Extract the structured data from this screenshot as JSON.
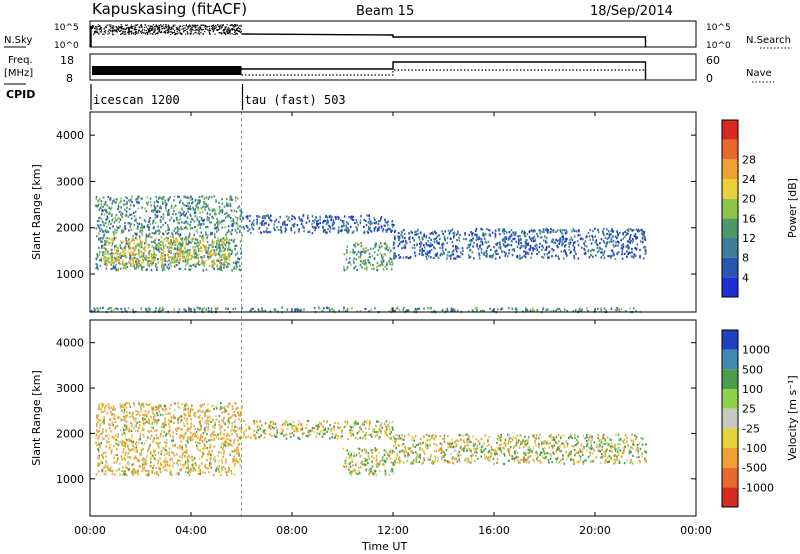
{
  "header": {
    "station": "Kapuskasing (fitACF)",
    "beam": "Beam 15",
    "date": "18/Sep/2014"
  },
  "top_panels": {
    "nsky_label": "N.Sky",
    "nsky_ticks": [
      "10^5",
      "10^0"
    ],
    "nsearch_label": "N.Search",
    "nsearch_ticks": [
      "10^5",
      "10^0"
    ],
    "freq_label_1": "Freq.",
    "freq_label_2": "[MHz]",
    "freq_ticks": [
      "18",
      "8"
    ],
    "nave_label": "Nave",
    "nave_ticks": [
      "60",
      "0"
    ],
    "cpid_label": "CPID",
    "cpid_segments": [
      {
        "name": "icescan 1200",
        "start_hour": 0,
        "end_hour": 6
      },
      {
        "name": "tau (fast) 503",
        "start_hour": 6,
        "end_hour": 24
      }
    ]
  },
  "axes": {
    "ylabel": "Slant Range [km]",
    "xlabel": "Time UT",
    "xticks": [
      "00:00",
      "04:00",
      "08:00",
      "12:00",
      "16:00",
      "20:00",
      "00:00"
    ],
    "yticks": [
      "1000",
      "2000",
      "3000",
      "4000"
    ]
  },
  "power_colorbar": {
    "label": "Power [dB]",
    "ticks": [
      "4",
      "8",
      "12",
      "16",
      "20",
      "24",
      "28"
    ],
    "colors": [
      "#1f2fd6",
      "#2a55b0",
      "#3d7f9a",
      "#4a9a6a",
      "#8ec44a",
      "#e8d23a",
      "#f0a030",
      "#e86a2a",
      "#d82a20"
    ]
  },
  "velocity_colorbar": {
    "label": "Velocity [m s⁻¹]",
    "ticks": [
      "1000",
      "500",
      "100",
      "25",
      "-25",
      "-100",
      "-500",
      "-1000"
    ],
    "colors": [
      "#2040c0",
      "#3f8ab0",
      "#4aa04a",
      "#8ed24a",
      "#c8c8c0",
      "#e8d23a",
      "#f0a030",
      "#e86a2a",
      "#d82a20"
    ]
  },
  "chart_data": [
    {
      "type": "heatmap",
      "title": "Power",
      "xlabel": "Time UT",
      "ylabel": "Slant Range [km]",
      "xlim": [
        0,
        24
      ],
      "ylim": [
        180,
        4500
      ],
      "value_label": "Power [dB]",
      "value_range": [
        0,
        30
      ],
      "regions": [
        {
          "x": [
            0.2,
            6.0
          ],
          "y": [
            1100,
            2700
          ],
          "value": 10
        },
        {
          "x": [
            0.5,
            5.5
          ],
          "y": [
            1200,
            1800
          ],
          "value": 18
        },
        {
          "x": [
            6.0,
            12.0
          ],
          "y": [
            1900,
            2300
          ],
          "value": 6
        },
        {
          "x": [
            10.0,
            12.0
          ],
          "y": [
            1100,
            1700
          ],
          "value": 12
        },
        {
          "x": [
            12.0,
            22.0
          ],
          "y": [
            1350,
            2000
          ],
          "value": 6
        },
        {
          "x": [
            0.0,
            22.0
          ],
          "y": [
            200,
            300
          ],
          "value": 10
        }
      ]
    },
    {
      "type": "heatmap",
      "title": "Velocity",
      "xlabel": "Time UT",
      "ylabel": "Slant Range [km]",
      "xlim": [
        0,
        24
      ],
      "ylim": [
        180,
        4500
      ],
      "value_label": "Velocity [m s⁻¹]",
      "value_range": [
        -1000,
        1000
      ],
      "regions": [
        {
          "x": [
            0.2,
            6.0
          ],
          "y": [
            1100,
            2700
          ],
          "value": -150
        },
        {
          "x": [
            6.0,
            12.0
          ],
          "y": [
            1900,
            2300
          ],
          "value": 0
        },
        {
          "x": [
            10.0,
            12.0
          ],
          "y": [
            1100,
            1700
          ],
          "value": 50
        },
        {
          "x": [
            12.0,
            22.0
          ],
          "y": [
            1350,
            2000
          ],
          "value": 0
        }
      ]
    }
  ]
}
